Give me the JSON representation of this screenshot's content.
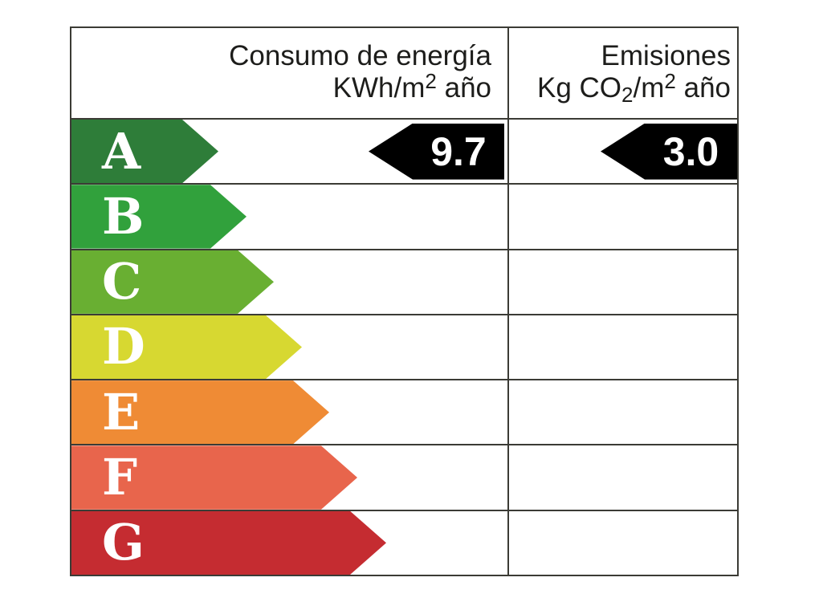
{
  "chart_data": {
    "type": "bar",
    "categories": [
      "A",
      "B",
      "C",
      "D",
      "E",
      "F",
      "G"
    ],
    "category_colors": [
      "#2e7d39",
      "#31a13c",
      "#69af32",
      "#d7d831",
      "#ef8b35",
      "#e8654c",
      "#c52c31"
    ],
    "series": [
      {
        "name": "Consumo de energía KWh/m2 año",
        "rating": "A",
        "value": 9.7
      },
      {
        "name": "Emisiones Kg CO2/m2 año",
        "rating": "A",
        "value": 3.0
      }
    ],
    "legend": "none",
    "grid": "table-lines"
  },
  "header": {
    "consumption": {
      "line1": "Consumo de energía",
      "unit_pre": "KWh/m",
      "unit_sup": "2",
      "unit_post": " año"
    },
    "emissions": {
      "line1": "Emisiones",
      "unit_pre": "Kg CO",
      "unit_sub": "2",
      "unit_mid": "/m",
      "unit_sup": "2",
      "unit_post": " año"
    }
  },
  "ratings": [
    {
      "letter": "A",
      "color": "#2e7d39"
    },
    {
      "letter": "B",
      "color": "#31a13c"
    },
    {
      "letter": "C",
      "color": "#69af32"
    },
    {
      "letter": "D",
      "color": "#d7d831"
    },
    {
      "letter": "E",
      "color": "#ef8b35"
    },
    {
      "letter": "F",
      "color": "#e8654c"
    },
    {
      "letter": "G",
      "color": "#c52c31"
    }
  ],
  "values": {
    "consumption": {
      "value": "9.7",
      "arrow_color": "#000000",
      "text_color": "#ffffff"
    },
    "emissions": {
      "value": "3.0",
      "arrow_color": "#000000",
      "text_color": "#ffffff"
    }
  },
  "colors": {
    "border": "#3b3b35",
    "background": "#ffffff",
    "letter_text": "#ffffff"
  }
}
